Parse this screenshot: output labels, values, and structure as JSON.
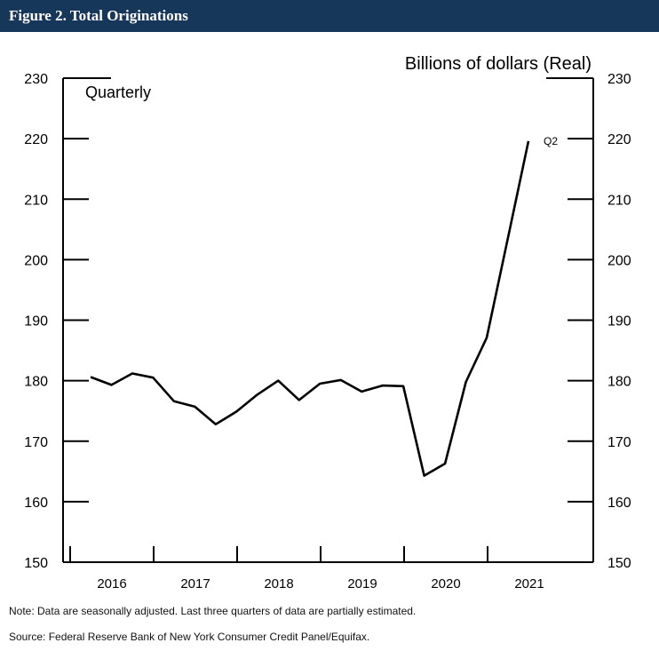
{
  "header": {
    "title": "Figure 2. Total Originations"
  },
  "chart_data": {
    "type": "line",
    "title": "Figure 2. Total Originations",
    "ylabel": "Billions of dollars (Real)",
    "annotation_left": "Quarterly",
    "end_label": "Q2",
    "ylim": [
      150,
      230
    ],
    "yticks": [
      150,
      160,
      170,
      180,
      190,
      200,
      210,
      220,
      230
    ],
    "xtick_labels": [
      "2016",
      "2017",
      "2018",
      "2019",
      "2020",
      "2021"
    ],
    "x": [
      "2016Q1",
      "2016Q2",
      "2016Q3",
      "2016Q4",
      "2017Q1",
      "2017Q2",
      "2017Q3",
      "2017Q4",
      "2018Q1",
      "2018Q2",
      "2018Q3",
      "2018Q4",
      "2019Q1",
      "2019Q2",
      "2019Q3",
      "2019Q4",
      "2020Q1",
      "2020Q2",
      "2020Q3",
      "2020Q4",
      "2021Q1",
      "2021Q2"
    ],
    "series": [
      {
        "name": "Total Originations",
        "values": [
          180.6,
          179.3,
          181.2,
          180.5,
          176.6,
          175.7,
          172.8,
          174.9,
          177.7,
          180.0,
          176.8,
          179.5,
          180.1,
          178.2,
          179.2,
          179.1,
          164.3,
          166.3,
          179.8,
          187.1,
          203.3,
          219.6
        ]
      }
    ],
    "grid": false
  },
  "notes": {
    "note": "Note: Data are seasonally adjusted. Last three quarters of data are partially estimated.",
    "source": "Source: Federal Reserve Bank of New York Consumer Credit Panel/Equifax."
  }
}
